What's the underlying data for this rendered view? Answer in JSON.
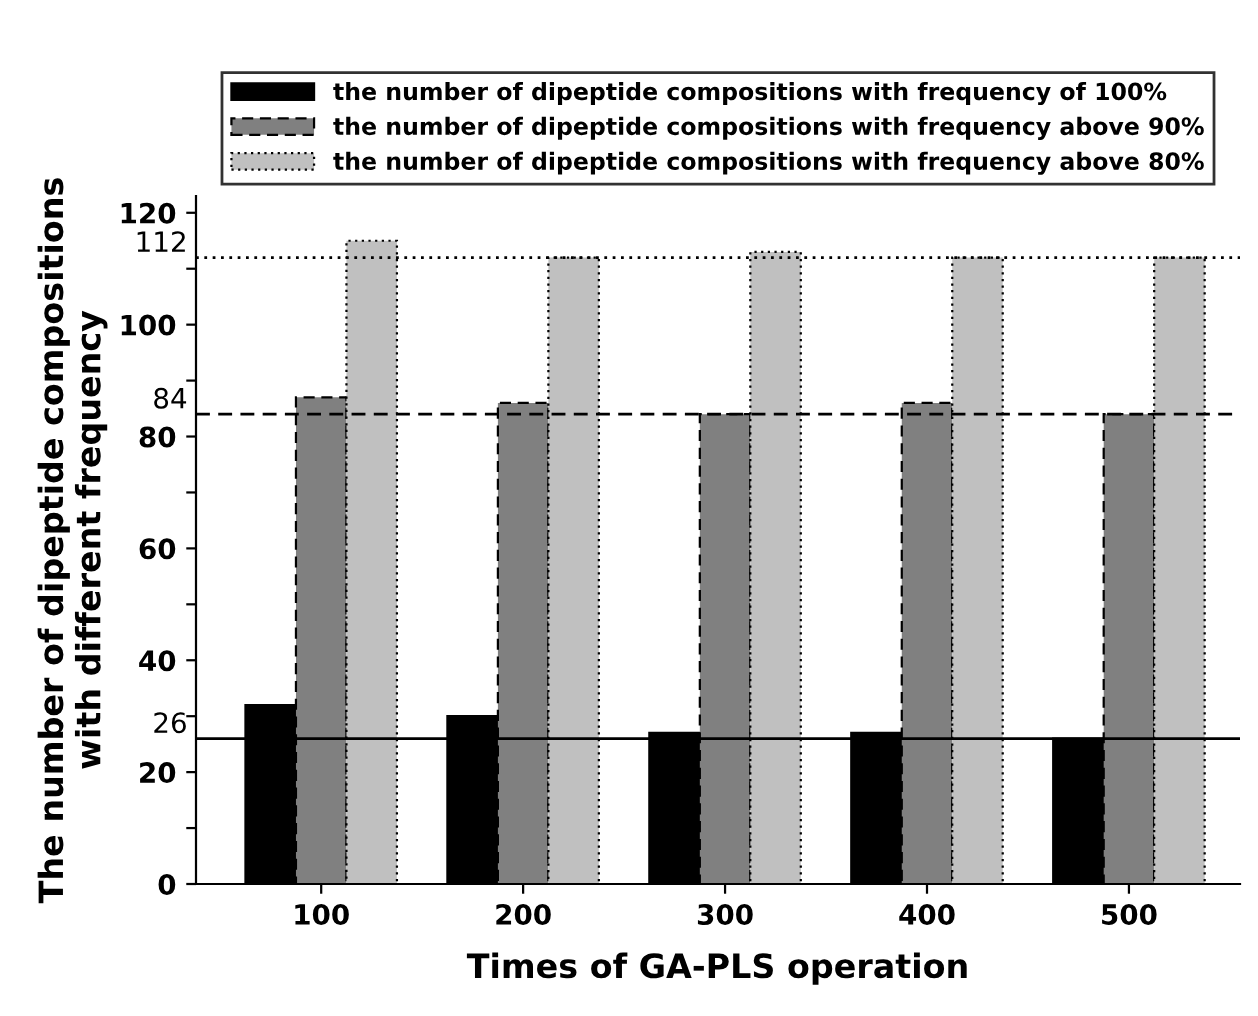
{
  "chart_data": {
    "type": "bar",
    "xlabel": "Times of GA-PLS operation",
    "ylabel": "The number of dipeptide compositions\nwith different frequency",
    "categories": [
      "100",
      "200",
      "300",
      "400",
      "500"
    ],
    "series": [
      {
        "name": "the number of dipeptide compositions with frequency of 100%",
        "color": "#000000",
        "line_style": "solid",
        "values": [
          32,
          30,
          27,
          27,
          26
        ]
      },
      {
        "name": "the number of dipeptide compositions with frequency above 90%",
        "color": "#808080",
        "line_style": "dashed",
        "values": [
          87,
          86,
          84,
          86,
          84
        ]
      },
      {
        "name": "the number of dipeptide compositions with frequency above 80%",
        "color": "#c0c0c0",
        "line_style": "dotted",
        "values": [
          115,
          112,
          113,
          112,
          112
        ]
      }
    ],
    "ylim": [
      0,
      123
    ],
    "yticks": [
      0,
      {
        "value": 10,
        "label": null
      },
      20,
      {
        "value": 30,
        "label": null
      },
      40,
      {
        "value": 50,
        "label": null
      },
      60,
      {
        "value": 70,
        "label": null
      },
      80,
      {
        "value": 90,
        "label": null
      },
      100,
      {
        "value": 110,
        "label": null
      },
      120
    ],
    "ref_lines": [
      {
        "axis": "y",
        "value": 26,
        "label": "26",
        "color": "#000000",
        "line_style": "solid"
      },
      {
        "axis": "y",
        "value": 84,
        "label": "84",
        "color": "#000000",
        "line_style": "dashed"
      },
      {
        "axis": "y",
        "value": 112,
        "label": "112",
        "color": "#000000",
        "line_style": "dotted"
      }
    ],
    "grid": false,
    "legend": "top"
  }
}
